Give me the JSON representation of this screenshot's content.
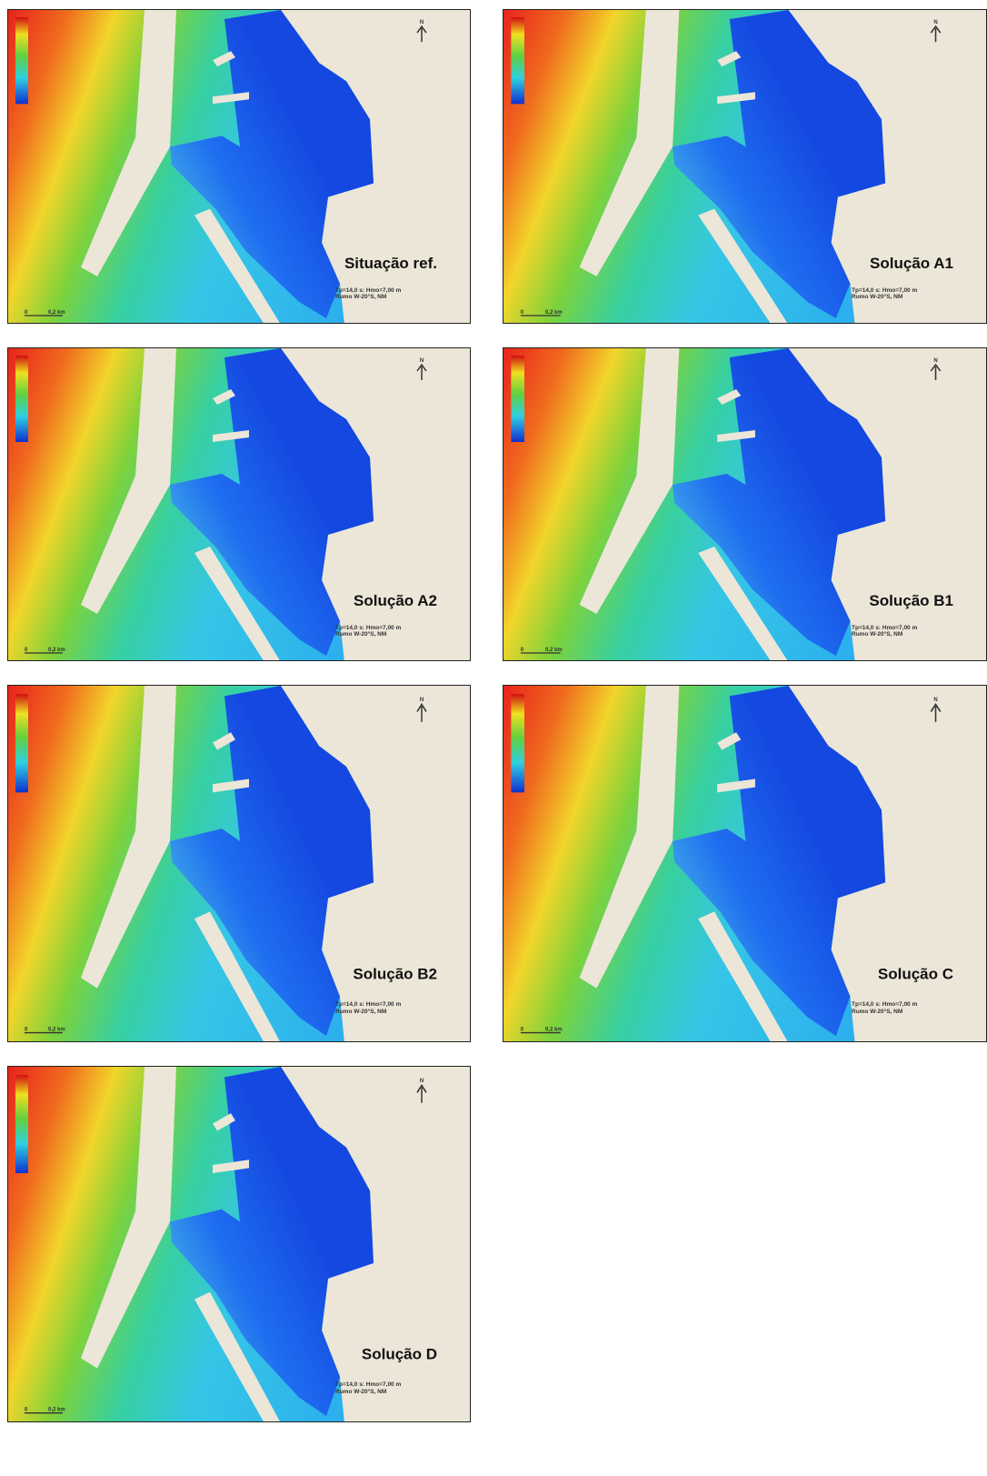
{
  "panels": [
    {
      "label": "Situação ref.",
      "conditions": [
        "Tp=14,0 s: Hmo=7,00 m",
        "Rumo W-20°S, NM"
      ],
      "scale": [
        "0",
        "0,2 km"
      ],
      "north": "N"
    },
    {
      "label": "Solução A1",
      "conditions": [
        "Tp=14,0 s: Hmo=7,00 m",
        "Rumo W-20°S, NM"
      ],
      "scale": [
        "0",
        "0,2 km"
      ],
      "north": "N"
    },
    {
      "label": "Solução A2",
      "conditions": [
        "Tp=14,0 s: Hmo=7,00 m",
        "Rumo W-20°S, NM"
      ],
      "scale": [
        "0",
        "0,2 km"
      ],
      "north": "N"
    },
    {
      "label": "Solução B1",
      "conditions": [
        "Tp=14,0 s: Hmo=7,00 m",
        "Rumo W-20°S, NM"
      ],
      "scale": [
        "0",
        "0,2 km"
      ],
      "north": "N"
    },
    {
      "label": "Solução B2",
      "conditions": [
        "Tp=14,0 s: Hmo=7,00 m",
        "Rumo W-20°S, NM"
      ],
      "scale": [
        "0",
        "0,2 km"
      ],
      "north": "N"
    },
    {
      "label": "Solução C",
      "conditions": [
        "Tp=14,0 s: Hmo=7,00 m",
        "Rumo W-20°S, NM"
      ],
      "scale": [
        "0",
        "0,2 km"
      ],
      "north": "N"
    },
    {
      "label": "Solução D",
      "conditions": [
        "Tp=14,0 s: Hmo=7,00 m",
        "Rumo W-20°S, NM"
      ],
      "scale": [
        "0",
        "0,2 km"
      ],
      "north": "N"
    }
  ]
}
